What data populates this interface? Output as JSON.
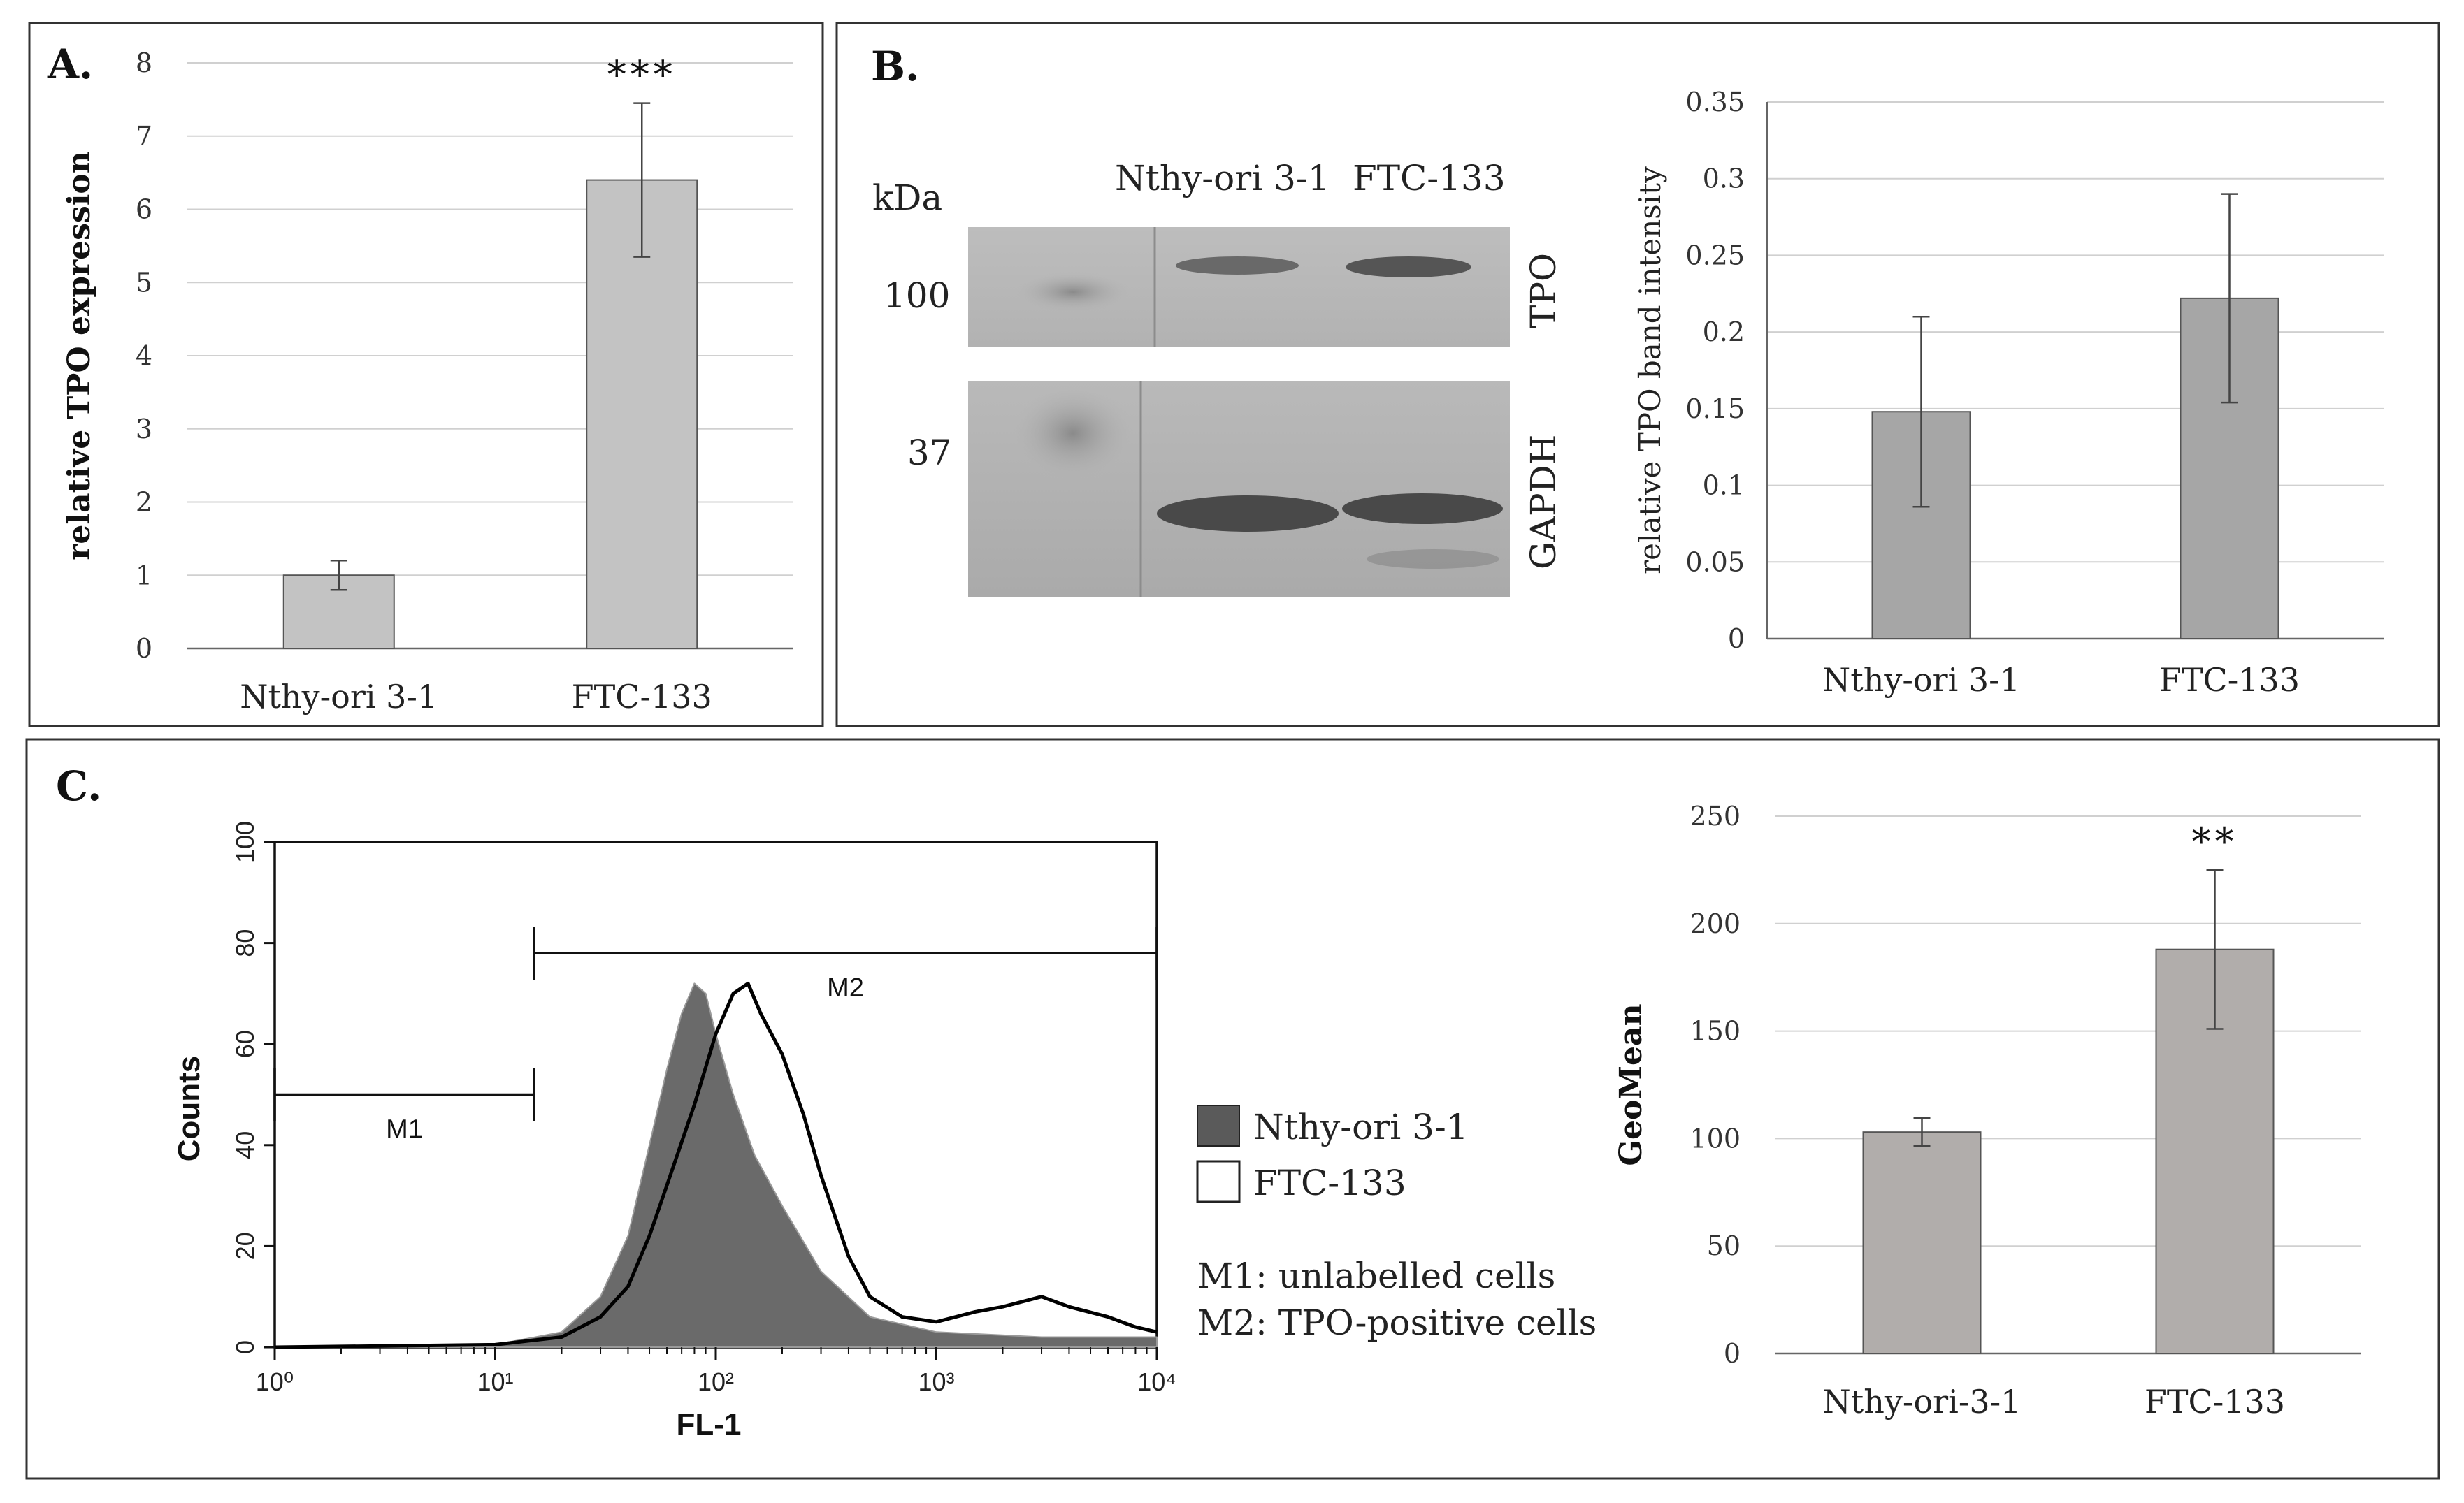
{
  "colors": {
    "barA": "#c3c3c3",
    "barB": "#a6a6a6",
    "barC": "#b1adab",
    "histFill": "#6a6a6a",
    "histLine": "#000000"
  },
  "panelA": {
    "label": "A."
  },
  "panelB": {
    "label": "B.",
    "kda_label": "kDa",
    "lane1": "Nthy-ori 3-1",
    "lane2": "FTC-133",
    "mw1": "100",
    "mw2": "37",
    "band1": "TPO",
    "band2": "GAPDH"
  },
  "panelC": {
    "label": "C.",
    "legend1": "Nthy-ori 3-1",
    "legend2": "FTC-133",
    "note1": "M1: unlabelled cells",
    "note2": "M2: TPO-positive cells"
  },
  "chart_data": [
    {
      "type": "bar",
      "categories": [
        "Nthy-ori 3-1",
        "FTC-133"
      ],
      "values": [
        1.0,
        6.4
      ],
      "errors": [
        0.2,
        1.05
      ],
      "significance": [
        "",
        "***"
      ],
      "title": "",
      "xlabel": "",
      "ylabel": "relative TPO expression",
      "ylim": [
        0,
        8
      ],
      "yticks": [
        "0",
        "1",
        "2",
        "3",
        "4",
        "5",
        "6",
        "7",
        "8"
      ],
      "grid": true
    },
    {
      "type": "bar",
      "categories": [
        "Nthy-ori 3-1",
        "FTC-133"
      ],
      "values": [
        0.148,
        0.222
      ],
      "errors": [
        0.062,
        0.068
      ],
      "title": "",
      "xlabel": "",
      "ylabel": "relative TPO band intensity",
      "ylim": [
        0,
        0.35
      ],
      "yticks": [
        "0",
        "0.05",
        "0.1",
        "0.15",
        "0.2",
        "0.25",
        "0.3",
        "0.35"
      ],
      "grid": true
    },
    {
      "type": "area",
      "title": "",
      "xlabel": "FL-1",
      "ylabel": "Counts",
      "xscale": "log",
      "xlim": [
        1,
        10000
      ],
      "ylim": [
        0,
        100
      ],
      "xticks": [
        "10⁰",
        "10¹",
        "10²",
        "10³",
        "10⁴"
      ],
      "yticks": [
        "0",
        "20",
        "40",
        "60",
        "80",
        "100"
      ],
      "markers": [
        {
          "name": "M1",
          "from": 1,
          "to": 15,
          "y": 50
        },
        {
          "name": "M2",
          "from": 15,
          "to": 10000,
          "y": 78
        }
      ],
      "series": [
        {
          "name": "Nthy-ori 3-1",
          "style": "filled",
          "x": [
            1,
            10,
            20,
            30,
            40,
            50,
            60,
            70,
            80,
            90,
            100,
            120,
            150,
            200,
            300,
            500,
            1000,
            3000,
            10000
          ],
          "y": [
            0,
            0.5,
            3,
            10,
            22,
            40,
            55,
            66,
            72,
            70,
            62,
            50,
            38,
            28,
            15,
            6,
            3,
            2,
            2
          ]
        },
        {
          "name": "FTC-133",
          "style": "outline",
          "x": [
            1,
            10,
            20,
            30,
            40,
            50,
            60,
            80,
            100,
            120,
            140,
            160,
            200,
            250,
            300,
            400,
            500,
            700,
            1000,
            1500,
            2000,
            3000,
            4000,
            6000,
            8000,
            10000
          ],
          "y": [
            0,
            0.5,
            2,
            6,
            12,
            22,
            32,
            48,
            62,
            70,
            72,
            66,
            58,
            46,
            34,
            18,
            10,
            6,
            5,
            7,
            8,
            10,
            8,
            6,
            4,
            3
          ]
        }
      ]
    },
    {
      "type": "bar",
      "categories": [
        "Nthy-ori-3-1",
        "FTC-133"
      ],
      "values": [
        103,
        188
      ],
      "errors": [
        6.5,
        37
      ],
      "significance": [
        "",
        "**"
      ],
      "title": "",
      "xlabel": "",
      "ylabel": "GeoMean",
      "ylim": [
        0,
        250
      ],
      "yticks": [
        "0",
        "50",
        "100",
        "150",
        "200",
        "250"
      ],
      "grid": true
    }
  ]
}
